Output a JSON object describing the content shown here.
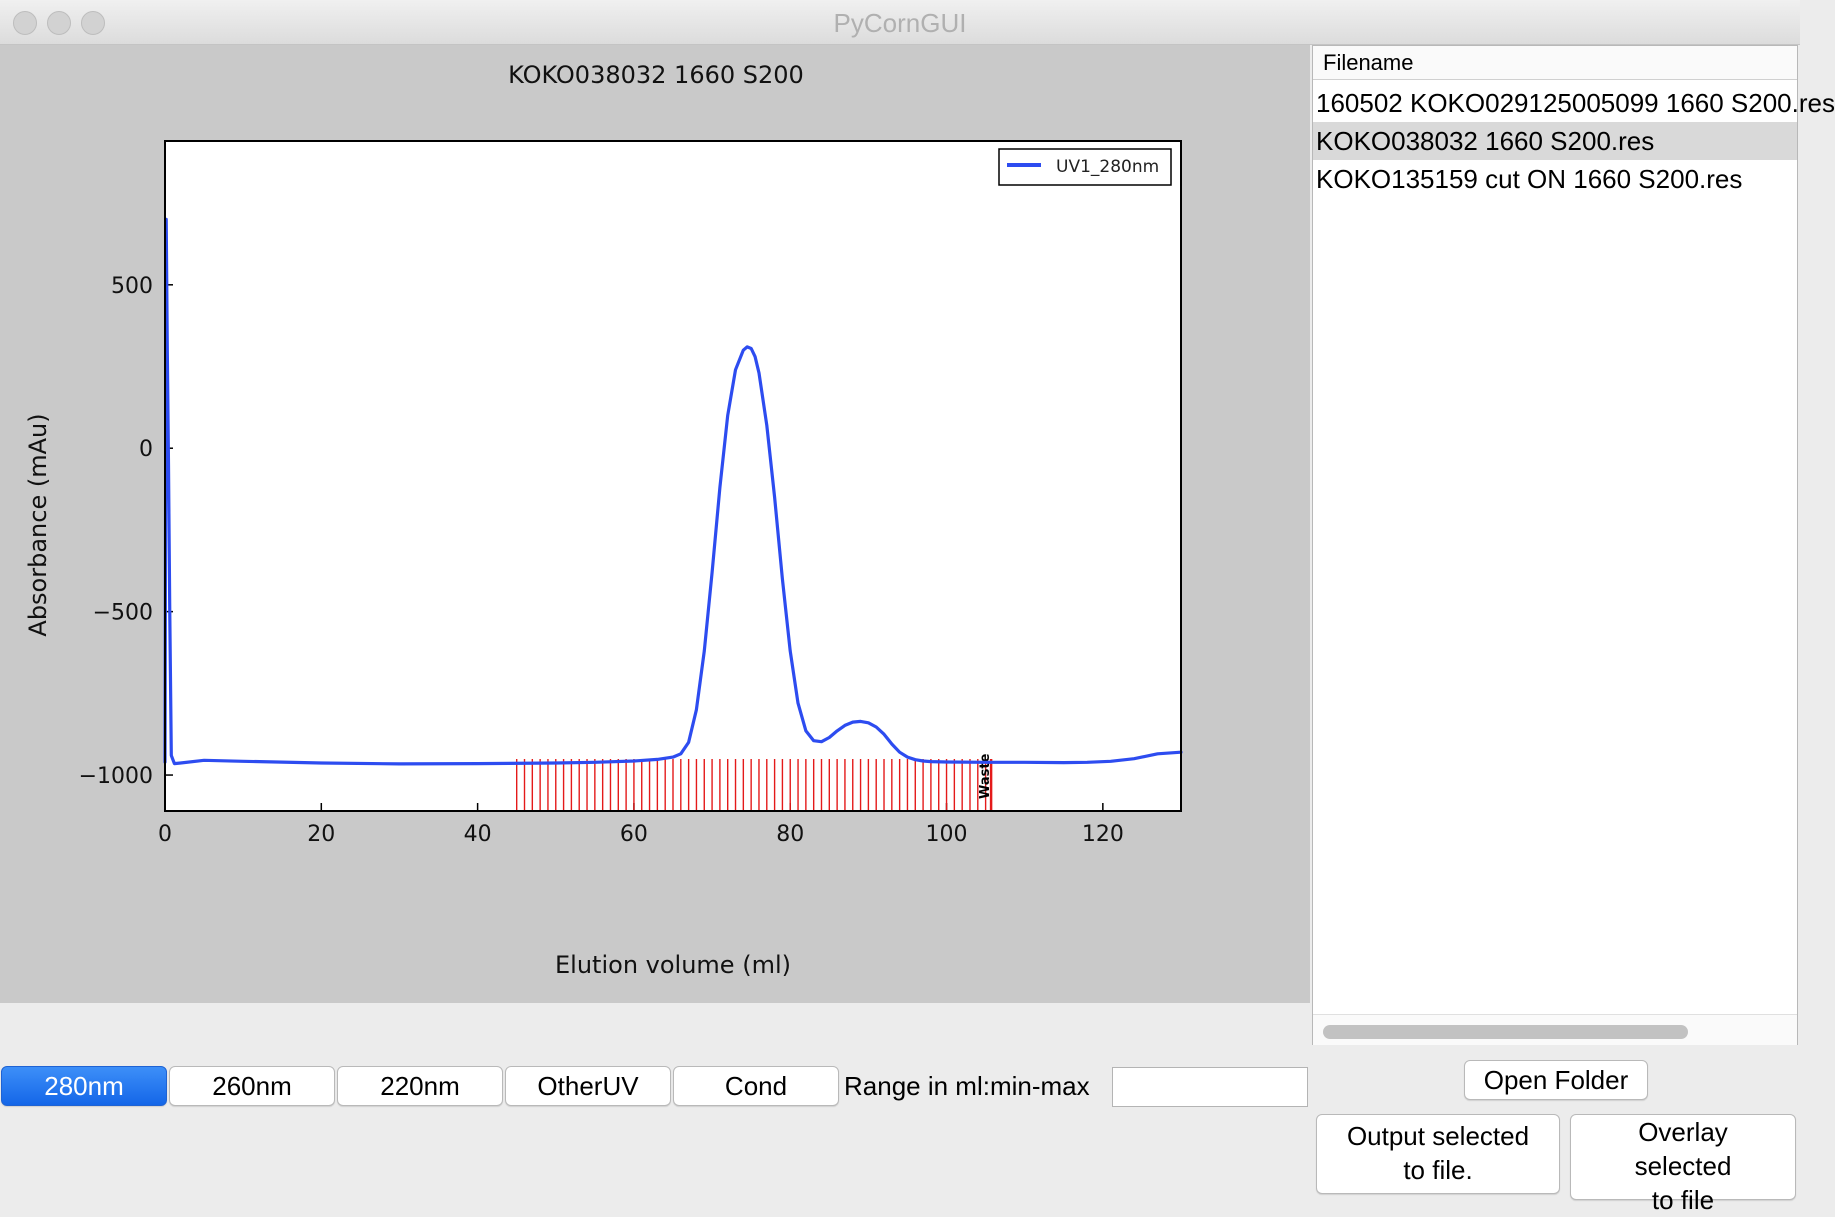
{
  "window": {
    "title": "PyCornGUI"
  },
  "plot": {
    "title": "KOKO038032 1660 S200"
  },
  "chart_data": {
    "type": "line",
    "title": "KOKO038032 1660 S200",
    "xlabel": "Elution volume (ml)",
    "ylabel": "Absorbance (mAu)",
    "xlim": [
      0,
      130
    ],
    "ylim": [
      -1110,
      940
    ],
    "xticks": [
      "0",
      "20",
      "40",
      "60",
      "80",
      "100",
      "120"
    ],
    "yticks": [
      "500",
      "0",
      "−500",
      "−1000"
    ],
    "legend_position": "top-right",
    "grid": false,
    "series": [
      {
        "name": "UV1_280nm",
        "color": "#2d4cf0",
        "x": [
          0,
          0.15,
          0.3,
          0.45,
          0.6,
          0.8,
          1.2,
          2,
          5,
          10,
          20,
          30,
          40,
          50,
          55,
          60,
          63,
          65,
          66,
          67,
          68,
          69,
          70,
          71,
          72,
          73,
          74,
          74.5,
          75,
          75.5,
          76,
          77,
          78,
          79,
          80,
          81,
          82,
          83,
          84,
          85,
          86,
          87,
          88,
          89,
          90,
          91,
          92,
          93,
          94,
          95,
          96,
          97,
          98,
          100,
          105,
          110,
          115,
          118,
          121,
          124,
          127,
          130
        ],
        "y": [
          -960,
          700,
          300,
          -50,
          -480,
          -940,
          -965,
          -963,
          -955,
          -958,
          -963,
          -966,
          -965,
          -963,
          -961,
          -957,
          -952,
          -945,
          -935,
          -900,
          -800,
          -620,
          -380,
          -120,
          100,
          240,
          300,
          310,
          305,
          280,
          230,
          70,
          -150,
          -400,
          -620,
          -780,
          -865,
          -895,
          -898,
          -885,
          -865,
          -848,
          -838,
          -836,
          -840,
          -853,
          -875,
          -905,
          -930,
          -945,
          -953,
          -957,
          -959,
          -960,
          -961,
          -961,
          -962,
          -961,
          -958,
          -950,
          -935,
          -930
        ]
      }
    ],
    "fraction_markers_x": [
      45,
      46,
      47,
      48,
      49,
      50,
      51,
      52,
      53,
      54,
      55,
      56,
      57,
      58,
      59,
      60,
      61,
      62,
      63,
      64,
      65,
      66,
      67,
      68,
      69,
      70,
      71,
      72,
      73,
      74,
      75,
      76,
      77,
      78,
      79,
      80,
      81,
      82,
      83,
      84,
      85,
      86,
      87,
      88,
      89,
      90,
      91,
      92,
      93,
      94,
      95,
      96,
      97,
      98,
      99,
      100,
      101,
      102,
      103,
      104,
      105,
      105.7
    ],
    "waste_label": "Waste"
  },
  "files": {
    "header": "Filename",
    "items": [
      {
        "name": "160502 KOKO029125005099 1660 S200.res",
        "selected": false
      },
      {
        "name": "KOKO038032 1660 S200.res",
        "selected": true
      },
      {
        "name": "KOKO135159 cut ON 1660 S200.res",
        "selected": false
      }
    ]
  },
  "controls": {
    "btn_280": "280nm",
    "btn_260": "260nm",
    "btn_220": "220nm",
    "btn_other": "OtherUV",
    "btn_cond": "Cond",
    "active": "280nm",
    "range_label": "Range in ml:min-max",
    "range_value": "",
    "open_folder": "Open Folder",
    "output_selected": "Output selected\nto file.",
    "overlay_selected": "Overlay\nselected\nto file"
  },
  "colors": {
    "accent": "#1466e8",
    "trace": "#2d4cf0",
    "fraction_marker": "#e41a1a",
    "plot_background": "#c9c9c9"
  }
}
